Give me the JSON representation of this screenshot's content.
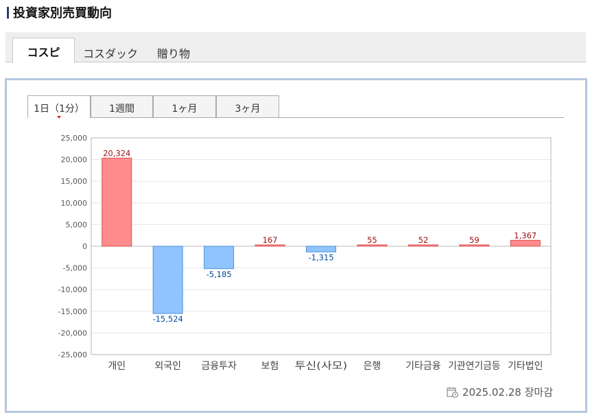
{
  "page": {
    "title": "投資家別売買動向"
  },
  "main_tabs": [
    {
      "label": "コスピ",
      "active": true
    },
    {
      "label": "コスダック",
      "active": false
    },
    {
      "label": "贈り物",
      "active": false
    }
  ],
  "period_tabs": [
    {
      "label": "1日（1分）",
      "active": true
    },
    {
      "label": "1週間",
      "active": false
    },
    {
      "label": "1ヶ月",
      "active": false
    },
    {
      "label": "3ヶ月",
      "active": false
    }
  ],
  "footer": {
    "date": "2025.02.28",
    "status": "장마감",
    "icon": "calendar-clock-icon"
  },
  "colors": {
    "positive_fill": "#ff8c8c",
    "positive_stroke": "#d85050",
    "positive_label": "#a01010",
    "negative_fill": "#8fc4ff",
    "negative_stroke": "#4f8fd6",
    "negative_label": "#0b4aa0"
  },
  "chart_data": {
    "type": "bar",
    "title": "",
    "xlabel": "",
    "ylabel": "",
    "categories": [
      "개인",
      "외국인",
      "금융투자",
      "보험",
      "투신(사모)",
      "은행",
      "기타금융",
      "기관연기금등",
      "기타법인"
    ],
    "values": [
      20324,
      -15524,
      -5185,
      167,
      -1315,
      55,
      52,
      59,
      1367
    ],
    "data_labels": [
      "20,324",
      "-15,524",
      "-5,185",
      "167",
      "-1,315",
      "55",
      "52",
      "59",
      "1,367"
    ],
    "ylim": [
      -25000,
      25000
    ],
    "yticks": [
      25000,
      20000,
      15000,
      10000,
      5000,
      0,
      -5000,
      -10000,
      -15000,
      -20000,
      -25000
    ],
    "ytick_labels": [
      "25,000",
      "20,000",
      "15,000",
      "10,000",
      "5,000",
      "0",
      "-5,000",
      "-10,000",
      "-15,000",
      "-20,000",
      "-25,000"
    ],
    "grid": true,
    "legend": "none"
  }
}
